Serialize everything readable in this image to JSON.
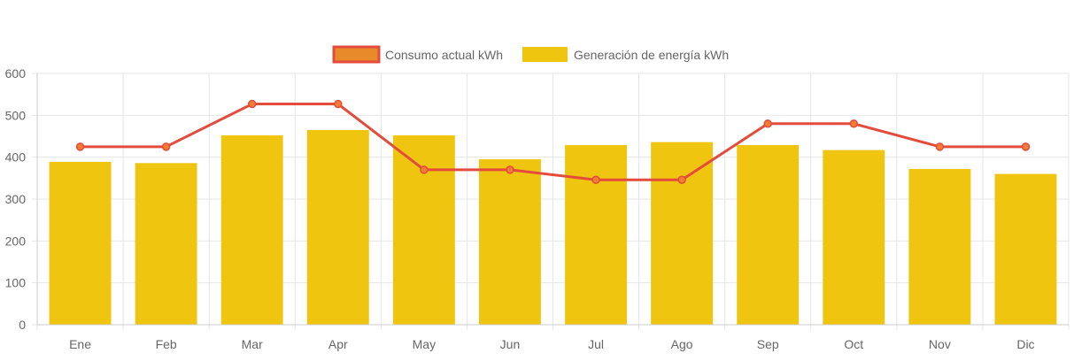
{
  "chart_data": {
    "type": "bar",
    "title": "",
    "xlabel": "",
    "ylabel": "",
    "categories": [
      "Ene",
      "Feb",
      "Mar",
      "Apr",
      "May",
      "Jun",
      "Jul",
      "Ago",
      "Sep",
      "Oct",
      "Nov",
      "Dic"
    ],
    "ylim": [
      0,
      600
    ],
    "yticks": [
      0,
      100,
      200,
      300,
      400,
      500,
      600
    ],
    "grid": true,
    "legend_position": "top-center",
    "series": [
      {
        "name": "Consumo actual kWh",
        "type": "line",
        "color": "#e34c3c",
        "point_fill": "#f07d32",
        "legend_fill": "#e8892a",
        "values": [
          425,
          425,
          527,
          527,
          370,
          370,
          346,
          346,
          480,
          480,
          425,
          425
        ]
      },
      {
        "name": "Generación de energía kWh",
        "type": "bar",
        "color": "#f0c510",
        "values": [
          389,
          386,
          452,
          465,
          452,
          395,
          429,
          436,
          429,
          417,
          372,
          360
        ]
      }
    ]
  },
  "colors": {
    "grid": "#e6e6e6",
    "axis": "#cccccc",
    "tick_text": "#666666"
  }
}
